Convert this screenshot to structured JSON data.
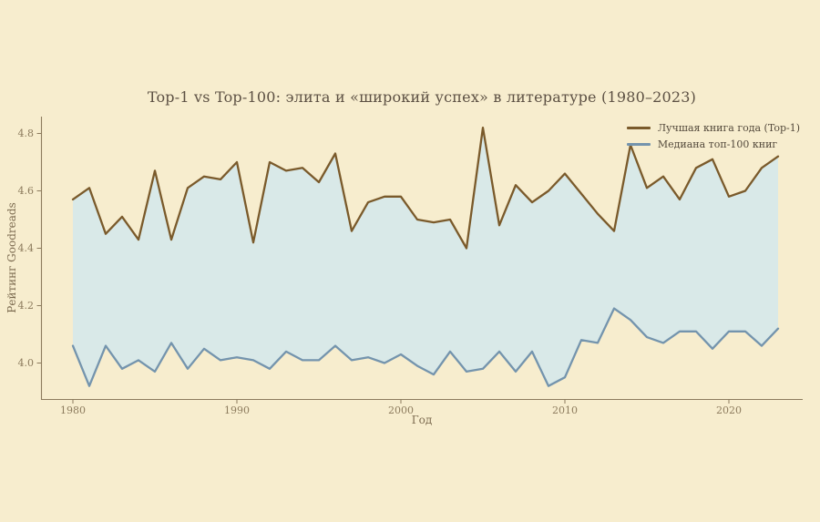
{
  "title": "Top-1 vs Top-100: элита и «широкий успех» в литературе (1980–2023)",
  "axes": {
    "x_label": "Год",
    "y_label": "Рейтинг Goodreads",
    "x_ticks": [
      1980,
      1990,
      2000,
      2010,
      2020
    ],
    "y_ticks": [
      "4.0",
      "4.2",
      "4.4",
      "4.6",
      "4.8"
    ]
  },
  "legend": [
    {
      "label": "Лучшая книга года (Top-1)",
      "color": "#7a5a2b"
    },
    {
      "label": "Медиана топ-100 книг",
      "color": "#7494ad"
    }
  ],
  "colors": {
    "background": "#f7edce",
    "area_fill": "#d9e9e8",
    "top1_line": "#7a5a2b",
    "median_line": "#7494ad",
    "title_text": "#5c5043",
    "axis_label_text": "#7c6b50",
    "tick_text": "#8c7b5d",
    "spine": "#8c7b5d"
  },
  "chart_data": {
    "type": "line",
    "title": "Top-1 vs Top-100: элита и «широкий успех» в литературе (1980–2023)",
    "xlabel": "Год",
    "ylabel": "Рейтинг Goodreads",
    "grid": false,
    "legend_position": "upper right",
    "fill_between_series": true,
    "xlim": [
      1978,
      2025
    ],
    "ylim": [
      3.88,
      4.86
    ],
    "x": [
      1980,
      1981,
      1982,
      1983,
      1984,
      1985,
      1986,
      1987,
      1988,
      1989,
      1990,
      1991,
      1992,
      1993,
      1994,
      1995,
      1996,
      1997,
      1998,
      1999,
      2000,
      2001,
      2002,
      2003,
      2004,
      2005,
      2006,
      2007,
      2008,
      2009,
      2010,
      2011,
      2012,
      2013,
      2014,
      2015,
      2016,
      2017,
      2018,
      2019,
      2020,
      2021,
      2022,
      2023
    ],
    "series": [
      {
        "name": "Лучшая книга года (Top-1)",
        "color": "#7a5a2b",
        "values": [
          4.57,
          4.61,
          4.45,
          4.51,
          4.43,
          4.67,
          4.43,
          4.61,
          4.65,
          4.64,
          4.7,
          4.42,
          4.7,
          4.67,
          4.68,
          4.63,
          4.73,
          4.46,
          4.56,
          4.58,
          4.58,
          4.5,
          4.49,
          4.5,
          4.4,
          4.82,
          4.48,
          4.62,
          4.56,
          4.6,
          4.66,
          4.59,
          4.52,
          4.46,
          4.76,
          4.61,
          4.65,
          4.57,
          4.68,
          4.71,
          4.58,
          4.6,
          4.68,
          4.72
        ]
      },
      {
        "name": "Медиана топ-100 книг",
        "color": "#7494ad",
        "values": [
          4.06,
          3.92,
          4.06,
          3.98,
          4.01,
          3.97,
          4.07,
          3.98,
          4.05,
          4.01,
          4.02,
          4.01,
          3.98,
          4.04,
          4.01,
          4.01,
          4.06,
          4.01,
          4.02,
          4.0,
          4.03,
          3.99,
          3.96,
          4.04,
          3.97,
          3.98,
          4.04,
          3.97,
          4.04,
          3.92,
          3.95,
          4.08,
          4.07,
          4.19,
          4.15,
          4.09,
          4.07,
          4.11,
          4.11,
          4.05,
          4.11,
          4.11,
          4.06,
          4.12
        ]
      }
    ]
  }
}
